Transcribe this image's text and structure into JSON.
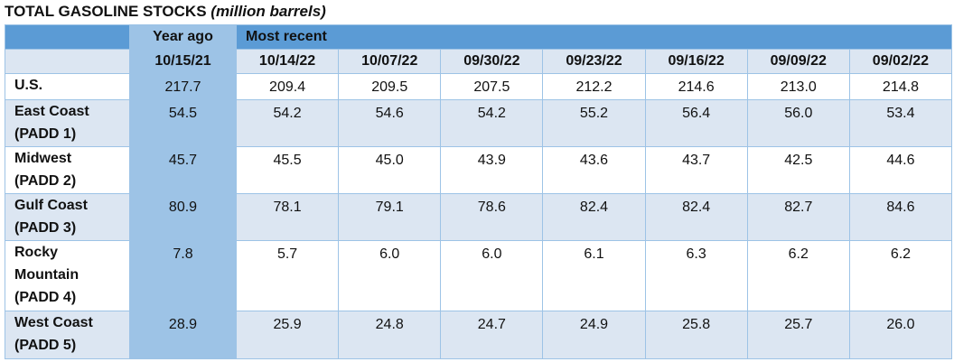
{
  "title": "TOTAL GASOLINE STOCKS",
  "title_unit": "(million barrels)",
  "table": {
    "groups": [
      "Year ago",
      "Most recent"
    ],
    "dates": [
      "10/15/21",
      "10/14/22",
      "10/07/22",
      "09/30/22",
      "09/23/22",
      "09/16/22",
      "09/09/22",
      "09/02/22"
    ],
    "rows": [
      {
        "label": [
          "U.S."
        ],
        "values": [
          "217.7",
          "209.4",
          "209.5",
          "207.5",
          "212.2",
          "214.6",
          "213.0",
          "214.8"
        ]
      },
      {
        "label": [
          "East Coast",
          "(PADD 1)"
        ],
        "values": [
          "54.5",
          "54.2",
          "54.6",
          "54.2",
          "55.2",
          "56.4",
          "56.0",
          "53.4"
        ]
      },
      {
        "label": [
          "Midwest",
          "(PADD 2)"
        ],
        "values": [
          "45.7",
          "45.5",
          "45.0",
          "43.9",
          "43.6",
          "43.7",
          "42.5",
          "44.6"
        ]
      },
      {
        "label": [
          "Gulf Coast",
          "(PADD 3)"
        ],
        "values": [
          "80.9",
          "78.1",
          "79.1",
          "78.6",
          "82.4",
          "82.4",
          "82.7",
          "84.6"
        ]
      },
      {
        "label": [
          "Rocky",
          "Mountain",
          "(PADD 4)"
        ],
        "values": [
          "7.8",
          "5.7",
          "6.0",
          "6.0",
          "6.1",
          "6.3",
          "6.2",
          "6.2"
        ]
      },
      {
        "label": [
          "West Coast",
          "(PADD 5)"
        ],
        "values": [
          "28.9",
          "25.9",
          "24.8",
          "24.7",
          "24.9",
          "25.8",
          "25.7",
          "26.0"
        ]
      }
    ]
  }
}
